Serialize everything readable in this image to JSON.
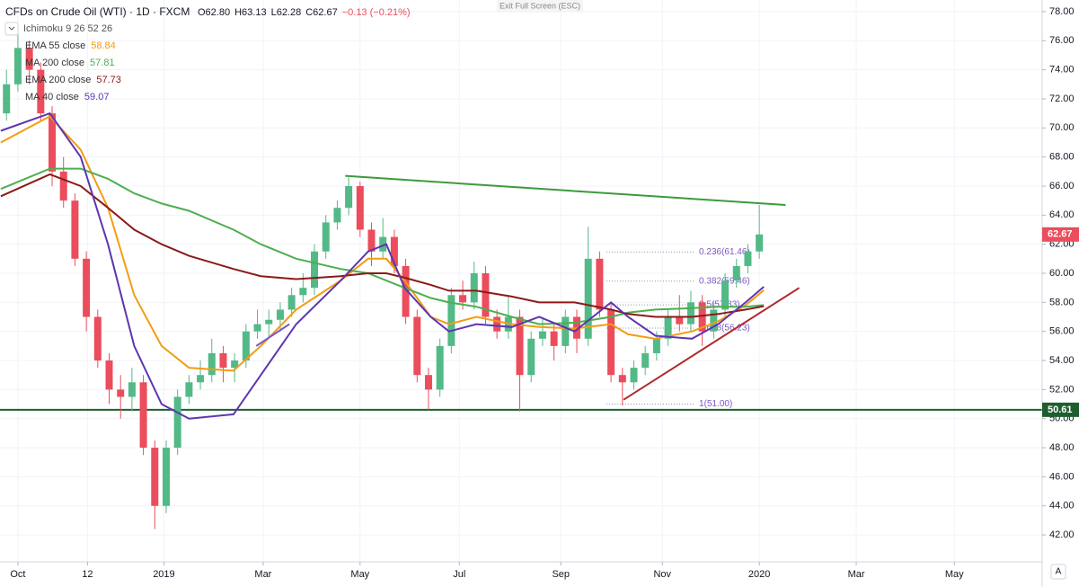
{
  "chart_data": {
    "type": "candlestick",
    "title": "CFDs on Crude Oil (WTI) · 1D · FXCM",
    "quote": [
      "O62.80",
      "H63.13",
      "L62.28",
      "C62.67",
      "−0.13 (−0.21%)"
    ],
    "indicator": "Ichimoku 9 26 52 26",
    "banner": "Exit Full Screen (ESC)",
    "scale_button": "A",
    "up_color": "#53b987",
    "down_color": "#eb4d5c",
    "grid": true,
    "xlim": [
      -0.57,
      90.8
    ],
    "ylim": [
      40.15,
      78.8
    ],
    "xticks": [
      {
        "value": 1,
        "label": "Oct"
      },
      {
        "value": 7.1,
        "label": "12"
      },
      {
        "value": 13.8,
        "label": "2019"
      },
      {
        "value": 22.5,
        "label": "Mar"
      },
      {
        "value": 31,
        "label": "May"
      },
      {
        "value": 39.7,
        "label": "Jul"
      },
      {
        "value": 48.6,
        "label": "Sep"
      },
      {
        "value": 57.5,
        "label": "Nov"
      },
      {
        "value": 66,
        "label": "2020"
      },
      {
        "value": 74.5,
        "label": "Mar"
      },
      {
        "value": 83.1,
        "label": "May"
      }
    ],
    "yticks": [
      {
        "value": 42,
        "label": "42.00"
      },
      {
        "value": 44,
        "label": "44.00"
      },
      {
        "value": 46,
        "label": "46.00"
      },
      {
        "value": 48,
        "label": "48.00"
      },
      {
        "value": 50,
        "label": "50.00"
      },
      {
        "value": 52,
        "label": "52.00"
      },
      {
        "value": 54,
        "label": "54.00"
      },
      {
        "value": 56,
        "label": "56.00"
      },
      {
        "value": 58,
        "label": "58.00"
      },
      {
        "value": 60,
        "label": "60.00"
      },
      {
        "value": 62,
        "label": "62.00"
      },
      {
        "value": 64,
        "label": "64.00"
      },
      {
        "value": 66,
        "label": "66.00"
      },
      {
        "value": 68,
        "label": "68.00"
      },
      {
        "value": 70,
        "label": "70.00"
      },
      {
        "value": 72,
        "label": "72.00"
      },
      {
        "value": 74,
        "label": "74.00"
      },
      {
        "value": 76,
        "label": "76.00"
      },
      {
        "value": 78,
        "label": "78.00"
      }
    ],
    "candles": [
      [
        71,
        74,
        70.5,
        73
      ],
      [
        73,
        76.5,
        72.5,
        75.5
      ],
      [
        75.5,
        76,
        73,
        74
      ],
      [
        74,
        74.5,
        70.5,
        71
      ],
      [
        71,
        71.5,
        66,
        67
      ],
      [
        67,
        68,
        64.5,
        65
      ],
      [
        65,
        65.5,
        60.5,
        61
      ],
      [
        61,
        61.5,
        56,
        57
      ],
      [
        57,
        57.5,
        53.5,
        54
      ],
      [
        54,
        54.5,
        51,
        52
      ],
      [
        52,
        53,
        50,
        51.5
      ],
      [
        51.5,
        53.5,
        50.5,
        52.5
      ],
      [
        52.5,
        53,
        47.5,
        48
      ],
      [
        48,
        48.5,
        42.4,
        44
      ],
      [
        44,
        48.5,
        43.5,
        48
      ],
      [
        48,
        52,
        47.5,
        51.5
      ],
      [
        51.5,
        53,
        51,
        52.5
      ],
      [
        52.5,
        54,
        52,
        53
      ],
      [
        53,
        55.5,
        52.5,
        54.5
      ],
      [
        54.5,
        55,
        52.5,
        53.5
      ],
      [
        53.5,
        54.5,
        52.5,
        54
      ],
      [
        54,
        56.5,
        53.5,
        56
      ],
      [
        56,
        57.5,
        55.5,
        56.5
      ],
      [
        56.5,
        57.5,
        55.5,
        56.8
      ],
      [
        56.8,
        58,
        56,
        57.5
      ],
      [
        57.5,
        59,
        57,
        58.5
      ],
      [
        58.5,
        60,
        58,
        59
      ],
      [
        59,
        62,
        58.5,
        61.5
      ],
      [
        61.5,
        64,
        61,
        63.5
      ],
      [
        63.5,
        65,
        63,
        64.5
      ],
      [
        64.5,
        66.6,
        64,
        66
      ],
      [
        66,
        66.3,
        62.5,
        63
      ],
      [
        63,
        63.5,
        60.5,
        61.5
      ],
      [
        61.5,
        63.8,
        61,
        62.5
      ],
      [
        62.5,
        63,
        60,
        60.5
      ],
      [
        60.5,
        61,
        56.5,
        57
      ],
      [
        57,
        57.5,
        52.5,
        53
      ],
      [
        53,
        53.5,
        50.6,
        52
      ],
      [
        52,
        55.5,
        51.5,
        55
      ],
      [
        55,
        59,
        54.5,
        58.5
      ],
      [
        58.5,
        59.5,
        57.5,
        58
      ],
      [
        58,
        60.8,
        57.5,
        60
      ],
      [
        60,
        60.5,
        56.5,
        57
      ],
      [
        57,
        57.5,
        55.5,
        56
      ],
      [
        56,
        58.5,
        55.5,
        57
      ],
      [
        57,
        57.5,
        50.5,
        53
      ],
      [
        53,
        56,
        52.5,
        55.5
      ],
      [
        55.5,
        57,
        55,
        56
      ],
      [
        56,
        56.5,
        54,
        55
      ],
      [
        55,
        57.5,
        54.5,
        57
      ],
      [
        57,
        57.5,
        54.5,
        55.5
      ],
      [
        55.5,
        63.2,
        55,
        61
      ],
      [
        61,
        61.5,
        57,
        57.5
      ],
      [
        57.5,
        58,
        52.5,
        53
      ],
      [
        53,
        53.5,
        50.9,
        52.5
      ],
      [
        52.5,
        54,
        52,
        53.5
      ],
      [
        53.5,
        55,
        53,
        54.5
      ],
      [
        54.5,
        56,
        54,
        55.5
      ],
      [
        55.5,
        57.5,
        55,
        57
      ],
      [
        57,
        58.5,
        56,
        56.5
      ],
      [
        56.5,
        58.8,
        56,
        58
      ],
      [
        58,
        58.5,
        55,
        56
      ],
      [
        56,
        58,
        55.5,
        57.5
      ],
      [
        57.5,
        60,
        57,
        59.5
      ],
      [
        59.5,
        61,
        59,
        60.5
      ],
      [
        60.5,
        62,
        60,
        61.5
      ],
      [
        61.5,
        64.7,
        61,
        62.67
      ]
    ],
    "x": [
      -0.5,
      3.8,
      6.5,
      8.9,
      11.2,
      13.6,
      16,
      19.9,
      22.3,
      25.4,
      29.3,
      31.7,
      33.3,
      34.9,
      37.2,
      38.8,
      41.2,
      44.3,
      46.7,
      49.8,
      53,
      54.5,
      56.9,
      60.1,
      62.4,
      64.8,
      66.4
    ],
    "series": [
      {
        "name": "EMA 55 close",
        "last": 58.84,
        "color": "#f39c12",
        "values": [
          69,
          70.8,
          68.5,
          64.5,
          58.5,
          55,
          53.5,
          53.3,
          55,
          57.5,
          59.5,
          61,
          61,
          59.5,
          57,
          56.5,
          57,
          56.5,
          56.3,
          56.2,
          56.5,
          55.8,
          55.5,
          56,
          56.7,
          57.8,
          58.84
        ]
      },
      {
        "name": "MA 200 close",
        "last": 57.81,
        "color": "#4caf50",
        "values": [
          65.8,
          67.2,
          67.2,
          66.5,
          65.5,
          64.8,
          64.3,
          63,
          62,
          61,
          60.3,
          60,
          59.5,
          59,
          58.3,
          58,
          57.7,
          57,
          56.5,
          56.6,
          57,
          57.3,
          57.5,
          57.6,
          57.7,
          57.7,
          57.81
        ]
      },
      {
        "name": "EMA 200 close",
        "last": 57.73,
        "color": "#8b1a1a",
        "values": [
          65.3,
          66.8,
          66,
          64.5,
          63,
          62,
          61.2,
          60.3,
          59.8,
          59.6,
          59.8,
          60,
          60,
          59.7,
          59.2,
          58.8,
          58.8,
          58.4,
          58,
          58,
          57.5,
          57.2,
          57,
          57,
          57.2,
          57.5,
          57.73
        ]
      },
      {
        "name": "MA 40 close",
        "last": 59.07,
        "color": "#5e35b1",
        "values": [
          69.8,
          71,
          68,
          62,
          55,
          51,
          50,
          50.3,
          53,
          56.5,
          59.5,
          61.5,
          62,
          59,
          57,
          56,
          56.5,
          56.3,
          57,
          56,
          58,
          57,
          55.7,
          55.5,
          56.5,
          58,
          59.07
        ]
      }
    ],
    "trendlines": [
      {
        "color": "#3d9a3d",
        "x": [
          29.7,
          68.3
        ],
        "y": [
          66.7,
          64.7
        ]
      },
      {
        "color": "#b02a2a",
        "x": [
          54.1,
          69.5
        ],
        "y": [
          51.3,
          59
        ]
      },
      {
        "color": "#7e57c2",
        "x": [
          21.9,
          24.8
        ],
        "y": [
          55,
          56.5
        ]
      }
    ],
    "support": {
      "value": 50.61,
      "color": "#1e5e2e"
    },
    "fib": {
      "x": [
        52.6,
        60.4
      ],
      "levels": [
        {
          "value": 61.46,
          "label": "0.236(61.46)"
        },
        {
          "value": 59.46,
          "label": "0.382(59.46)"
        },
        {
          "value": 57.83,
          "label": "0.5(57.83)"
        },
        {
          "value": 56.23,
          "label": "0.618(56.23)"
        },
        {
          "value": 51.0,
          "label": "1(51.00)"
        }
      ]
    },
    "price_labels": [
      {
        "value": 62.67,
        "color": "#eb4d5c"
      },
      {
        "value": 50.61,
        "color": "#1e5e2e"
      }
    ]
  }
}
